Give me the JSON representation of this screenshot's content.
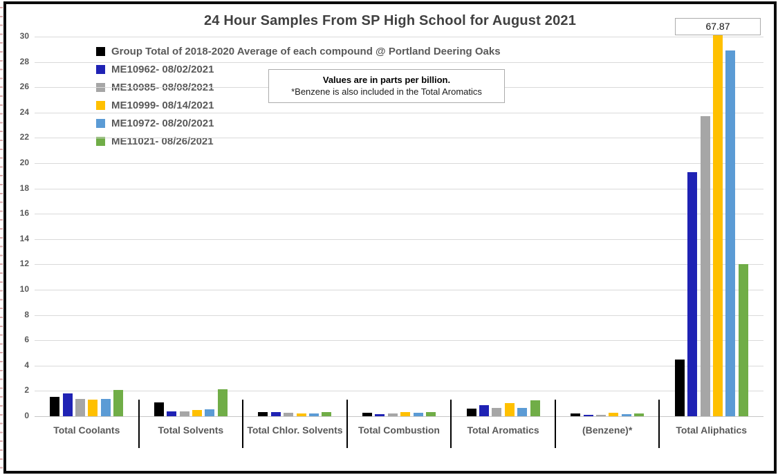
{
  "title": "24 Hour Samples From SP High School for August 2021",
  "note": {
    "line1": "Values are in parts per billion.",
    "line2": "*Benzene is also included in the Total Aromatics"
  },
  "callout": {
    "value": "67.87",
    "meaning": "actual value of clipped yellow bar (ME10999- 08/14/2021) for Total Aliphatics"
  },
  "colors": {
    "title_text": "#404040",
    "axis_text": "#595959",
    "gridline": "#d9d9d9",
    "separator": "#000000"
  },
  "chart_data": {
    "type": "bar",
    "title": "24 Hour Samples From SP High School for August 2021",
    "units": "parts per billion",
    "categories": [
      "Total Coolants",
      "Total Solvents",
      "Total Chlor. Solvents",
      "Total Combustion",
      "Total Aromatics",
      "(Benzene)*",
      "Total Aliphatics"
    ],
    "series": [
      {
        "name": "Group Total of 2018-2020 Average of each compound @ Portland Deering Oaks",
        "color": "#000000",
        "values": [
          1.55,
          1.1,
          0.35,
          0.3,
          0.6,
          0.2,
          4.5
        ]
      },
      {
        "name": "ME10962- 08/02/2021",
        "color": "#1f22b4",
        "values": [
          1.8,
          0.4,
          0.35,
          0.15,
          0.85,
          0.12,
          19.3
        ]
      },
      {
        "name": "ME10985- 08/08/2021",
        "color": "#a6a6a6",
        "values": [
          1.35,
          0.38,
          0.27,
          0.2,
          0.65,
          0.12,
          23.7
        ]
      },
      {
        "name": "ME10999- 08/14/2021",
        "color": "#ffc000",
        "values": [
          1.3,
          0.5,
          0.2,
          0.33,
          1.05,
          0.28,
          67.87
        ]
      },
      {
        "name": "ME10972- 08/20/2021",
        "color": "#5b9bd5",
        "values": [
          1.37,
          0.55,
          0.2,
          0.25,
          0.65,
          0.15,
          28.9
        ]
      },
      {
        "name": "ME11021- 08/26/2021",
        "color": "#70ad47",
        "values": [
          2.1,
          2.15,
          0.33,
          0.35,
          1.25,
          0.22,
          12.0
        ]
      }
    ],
    "ylim": [
      0,
      30
    ],
    "ytick_step": 2,
    "grid": true,
    "legend_position": "top-left",
    "clipping_note": "Values above 30 are clipped at the top of the plot; 67.87 is shown as a boxed data label"
  }
}
